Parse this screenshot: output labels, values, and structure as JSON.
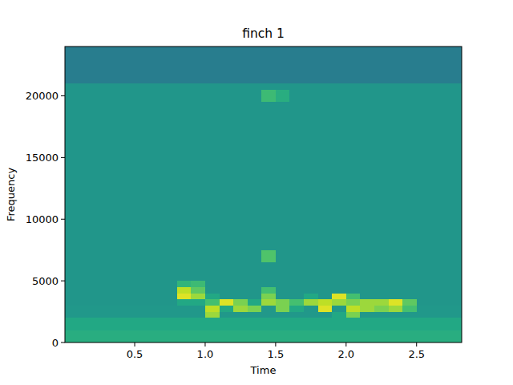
{
  "chart_data": {
    "type": "heatmap",
    "title": "finch 1",
    "x_label": "Time",
    "y_label": "Frequency",
    "xlim": [
      0.005,
      2.82
    ],
    "ylim": [
      0,
      24000
    ],
    "xticks": [
      0.5,
      {
        "value": 1,
        "label": "1.0"
      },
      1.5,
      {
        "value": 2,
        "label": "2.0"
      },
      2.5
    ],
    "yticks": [
      0,
      5000,
      10000,
      15000,
      20000
    ],
    "zlim": [
      0,
      1
    ],
    "x_bins": [
      0,
      0.1,
      0.2,
      0.3,
      0.4,
      0.5,
      0.6,
      0.7,
      0.8,
      0.9,
      1,
      1.1,
      1.2,
      1.3,
      1.4,
      1.5,
      1.6,
      1.7,
      1.8,
      1.9,
      2,
      2.1,
      2.2,
      2.3,
      2.4,
      2.5,
      2.6,
      2.7,
      2.8,
      2.9
    ],
    "y_bins": [
      0,
      1000,
      2000,
      2500,
      3000,
      3500,
      4000,
      4500,
      5000,
      6500,
      7500,
      19500,
      20500,
      21000,
      24000
    ],
    "cells": [
      [
        0.62,
        0.62,
        0.62,
        0.62,
        0.62,
        0.62,
        0.62,
        0.62,
        0.62,
        0.62,
        0.62,
        0.62,
        0.62,
        0.62,
        0.62,
        0.62,
        0.62,
        0.62,
        0.62,
        0.62,
        0.62,
        0.62,
        0.62,
        0.62,
        0.62,
        0.62,
        0.62,
        0.62,
        0.62
      ],
      [
        0.6,
        0.6,
        0.6,
        0.6,
        0.6,
        0.6,
        0.6,
        0.6,
        0.6,
        0.6,
        0.6,
        0.6,
        0.6,
        0.6,
        0.6,
        0.6,
        0.6,
        0.6,
        0.6,
        0.6,
        0.6,
        0.6,
        0.6,
        0.6,
        0.6,
        0.6,
        0.6,
        0.6,
        0.6
      ],
      [
        0.53,
        0.53,
        0.53,
        0.53,
        0.53,
        0.53,
        0.53,
        0.53,
        0.53,
        0.53,
        0.85,
        0.53,
        0.53,
        0.53,
        0.53,
        0.53,
        0.53,
        0.53,
        0.53,
        0.6,
        0.8,
        0.53,
        0.53,
        0.53,
        0.53,
        0.53,
        0.53,
        0.53,
        0.53
      ],
      [
        0.53,
        0.53,
        0.53,
        0.53,
        0.53,
        0.53,
        0.53,
        0.53,
        0.53,
        0.53,
        0.9,
        0.6,
        0.85,
        0.8,
        0.53,
        0.8,
        0.6,
        0.53,
        0.95,
        0.53,
        0.9,
        0.85,
        0.8,
        0.85,
        0.7,
        0.53,
        0.53,
        0.53,
        0.53
      ],
      [
        0.52,
        0.52,
        0.52,
        0.52,
        0.52,
        0.52,
        0.52,
        0.52,
        0.6,
        0.6,
        0.7,
        0.95,
        0.8,
        0.6,
        0.85,
        0.8,
        0.7,
        0.85,
        0.9,
        0.85,
        0.8,
        0.85,
        0.85,
        0.95,
        0.75,
        0.52,
        0.52,
        0.52,
        0.52
      ],
      [
        0.52,
        0.52,
        0.52,
        0.52,
        0.52,
        0.52,
        0.52,
        0.52,
        0.95,
        0.85,
        0.6,
        0.52,
        0.52,
        0.52,
        0.8,
        0.52,
        0.52,
        0.6,
        0.52,
        0.95,
        0.7,
        0.52,
        0.52,
        0.52,
        0.52,
        0.52,
        0.52,
        0.52,
        0.52
      ],
      [
        0.52,
        0.52,
        0.52,
        0.52,
        0.52,
        0.52,
        0.52,
        0.52,
        0.9,
        0.75,
        0.52,
        0.52,
        0.52,
        0.52,
        0.7,
        0.52,
        0.52,
        0.52,
        0.52,
        0.52,
        0.52,
        0.52,
        0.52,
        0.52,
        0.52,
        0.52,
        0.52,
        0.52,
        0.52
      ],
      [
        0.52,
        0.52,
        0.52,
        0.52,
        0.52,
        0.52,
        0.52,
        0.52,
        0.65,
        0.68,
        0.52,
        0.52,
        0.52,
        0.52,
        0.52,
        0.52,
        0.52,
        0.52,
        0.52,
        0.52,
        0.52,
        0.52,
        0.52,
        0.52,
        0.52,
        0.52,
        0.52,
        0.52,
        0.52
      ],
      [
        0.52,
        0.52,
        0.52,
        0.52,
        0.52,
        0.52,
        0.52,
        0.52,
        0.52,
        0.52,
        0.52,
        0.52,
        0.52,
        0.52,
        0.52,
        0.52,
        0.52,
        0.52,
        0.52,
        0.52,
        0.52,
        0.52,
        0.52,
        0.52,
        0.52,
        0.52,
        0.52,
        0.52,
        0.52
      ],
      [
        0.52,
        0.52,
        0.52,
        0.52,
        0.52,
        0.52,
        0.52,
        0.52,
        0.52,
        0.52,
        0.52,
        0.52,
        0.52,
        0.52,
        0.72,
        0.52,
        0.52,
        0.52,
        0.52,
        0.52,
        0.52,
        0.52,
        0.52,
        0.52,
        0.52,
        0.52,
        0.52,
        0.52,
        0.52
      ],
      [
        0.52,
        0.52,
        0.52,
        0.52,
        0.52,
        0.52,
        0.52,
        0.52,
        0.52,
        0.52,
        0.52,
        0.52,
        0.52,
        0.52,
        0.52,
        0.52,
        0.52,
        0.52,
        0.52,
        0.52,
        0.52,
        0.52,
        0.52,
        0.52,
        0.52,
        0.52,
        0.52,
        0.52,
        0.52
      ],
      [
        0.52,
        0.52,
        0.52,
        0.52,
        0.52,
        0.52,
        0.52,
        0.52,
        0.52,
        0.52,
        0.52,
        0.52,
        0.52,
        0.52,
        0.68,
        0.62,
        0.52,
        0.52,
        0.52,
        0.52,
        0.52,
        0.52,
        0.52,
        0.52,
        0.52,
        0.52,
        0.52,
        0.52,
        0.52
      ],
      [
        0.52,
        0.52,
        0.52,
        0.52,
        0.52,
        0.52,
        0.52,
        0.52,
        0.52,
        0.52,
        0.52,
        0.52,
        0.52,
        0.52,
        0.52,
        0.52,
        0.52,
        0.52,
        0.52,
        0.52,
        0.52,
        0.52,
        0.52,
        0.52,
        0.52,
        0.52,
        0.52,
        0.52,
        0.52
      ],
      [
        0.42,
        0.42,
        0.42,
        0.42,
        0.42,
        0.42,
        0.42,
        0.42,
        0.42,
        0.42,
        0.42,
        0.42,
        0.42,
        0.42,
        0.42,
        0.42,
        0.42,
        0.42,
        0.42,
        0.42,
        0.42,
        0.42,
        0.42,
        0.42,
        0.42,
        0.42,
        0.42,
        0.42,
        0.42
      ]
    ]
  }
}
